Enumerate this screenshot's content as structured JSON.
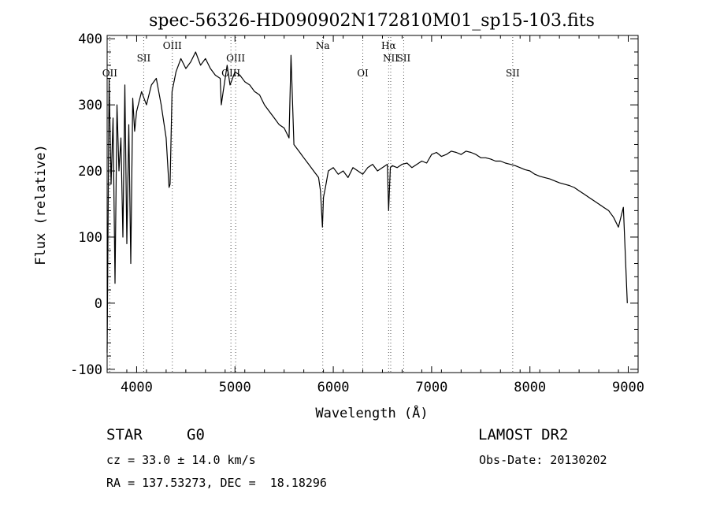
{
  "chart_data": {
    "type": "line",
    "title": "spec-56326-HD090902N172810M01_sp15-103.fits",
    "xlabel": "Wavelength (Å)",
    "ylabel": "Flux (relative)",
    "xlim": [
      3700,
      9100
    ],
    "ylim": [
      -105,
      405
    ],
    "xticks": [
      4000,
      5000,
      6000,
      7000,
      8000,
      9000
    ],
    "yticks": [
      -100,
      0,
      100,
      200,
      300,
      400
    ],
    "grid": false,
    "series": [
      {
        "x": [
          3700,
          3720,
          3740,
          3760,
          3780,
          3800,
          3820,
          3840,
          3860,
          3880,
          3900,
          3920,
          3940,
          3960,
          3980,
          4000,
          4050,
          4100,
          4150,
          4200,
          4250,
          4300,
          4330,
          4340,
          4360,
          4400,
          4450,
          4500,
          4550,
          4600,
          4650,
          4700,
          4750,
          4800,
          4850,
          4861,
          4880,
          4920,
          4950,
          5000,
          5050,
          5100,
          5150,
          5200,
          5250,
          5300,
          5350,
          5400,
          5450,
          5500,
          5550,
          5570,
          5600,
          5650,
          5700,
          5750,
          5800,
          5850,
          5870,
          5890,
          5900,
          5920,
          5950,
          6000,
          6050,
          6100,
          6150,
          6200,
          6250,
          6300,
          6350,
          6400,
          6450,
          6500,
          6550,
          6563,
          6580,
          6600,
          6650,
          6700,
          6750,
          6800,
          6850,
          6900,
          6950,
          7000,
          7050,
          7100,
          7150,
          7200,
          7250,
          7300,
          7350,
          7400,
          7450,
          7500,
          7550,
          7600,
          7650,
          7700,
          7750,
          7800,
          7850,
          7900,
          7950,
          8000,
          8050,
          8100,
          8150,
          8200,
          8250,
          8300,
          8350,
          8400,
          8450,
          8500,
          8550,
          8600,
          8650,
          8700,
          8750,
          8800,
          8850,
          8900,
          8950,
          8990
        ],
        "y": [
          -75,
          340,
          180,
          280,
          30,
          300,
          200,
          250,
          100,
          330,
          90,
          270,
          60,
          310,
          260,
          290,
          320,
          300,
          330,
          340,
          300,
          250,
          175,
          180,
          320,
          350,
          370,
          355,
          365,
          380,
          360,
          370,
          355,
          345,
          340,
          300,
          320,
          360,
          330,
          350,
          345,
          335,
          330,
          320,
          315,
          300,
          290,
          280,
          270,
          265,
          250,
          375,
          240,
          230,
          220,
          210,
          200,
          190,
          170,
          115,
          160,
          175,
          200,
          205,
          195,
          200,
          190,
          205,
          200,
          195,
          205,
          210,
          200,
          205,
          210,
          140,
          205,
          208,
          205,
          210,
          212,
          205,
          210,
          215,
          212,
          225,
          228,
          222,
          225,
          230,
          228,
          225,
          230,
          228,
          225,
          220,
          220,
          218,
          215,
          215,
          212,
          210,
          208,
          205,
          202,
          200,
          195,
          192,
          190,
          188,
          185,
          182,
          180,
          178,
          175,
          170,
          165,
          160,
          155,
          150,
          145,
          140,
          130,
          115,
          145,
          0
        ]
      }
    ],
    "annotations": [
      {
        "text": "OII",
        "x": 3727,
        "row": 3
      },
      {
        "text": "SII",
        "x": 4072,
        "row": 2
      },
      {
        "text": "OIII",
        "x": 4363,
        "row": 1
      },
      {
        "text": "OIII",
        "x": 4959,
        "row": 3
      },
      {
        "text": "OIII",
        "x": 5007,
        "row": 2
      },
      {
        "text": "Na",
        "x": 5893,
        "row": 1
      },
      {
        "text": "OI",
        "x": 6300,
        "row": 3
      },
      {
        "text": "Hα",
        "x": 6563,
        "row": 1
      },
      {
        "text": "NII",
        "x": 6584,
        "row": 2
      },
      {
        "text": "SII",
        "x": 6716,
        "row": 2
      },
      {
        "text": "SII",
        "x": 7825,
        "row": 3
      }
    ]
  },
  "info": {
    "object_class": "STAR",
    "subclass": "G0",
    "redshift": "cz = 33.0 ± 14.0 km/s",
    "coords": "RA = 137.53273, DEC =  18.18296",
    "survey": "LAMOST DR2",
    "obs_date": "Obs-Date: 20130202"
  }
}
